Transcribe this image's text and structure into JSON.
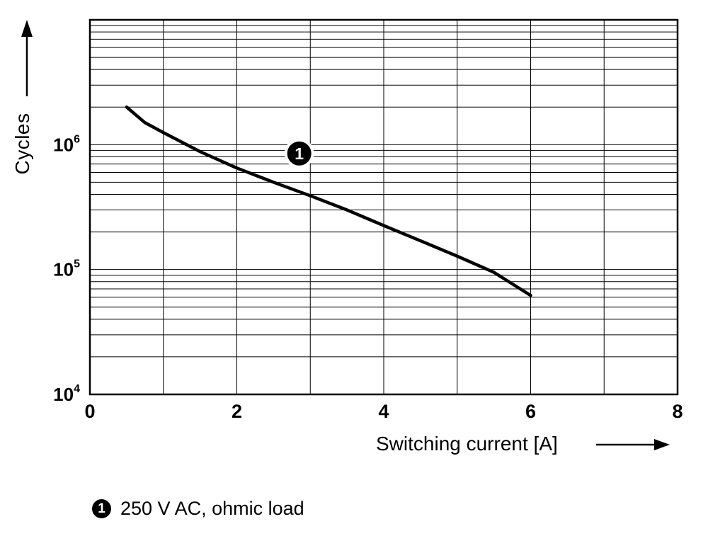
{
  "chart_data": {
    "type": "line",
    "title": "",
    "xlabel": "Switching current [A]",
    "ylabel": "Cycles",
    "xlim": [
      0,
      8
    ],
    "x_minor_step": 1,
    "x_ticks": [
      0,
      2,
      4,
      6,
      8
    ],
    "y_scale": "log",
    "ylim": [
      10000,
      10000000
    ],
    "y_ticks": [
      {
        "base": "10",
        "exp": "4",
        "value": 10000
      },
      {
        "base": "10",
        "exp": "5",
        "value": 100000
      },
      {
        "base": "10",
        "exp": "6",
        "value": 1000000
      }
    ],
    "grid": "on",
    "series": [
      {
        "name": "250 V AC, ohmic load",
        "marker": "1",
        "x": [
          0.5,
          0.75,
          1.0,
          1.5,
          2.0,
          2.5,
          3.0,
          3.5,
          4.0,
          4.5,
          5.0,
          5.5,
          6.0
        ],
        "y": [
          2000000,
          1500000,
          1250000,
          880000,
          650000,
          500000,
          390000,
          300000,
          225000,
          170000,
          128000,
          95000,
          62000
        ]
      }
    ],
    "annotation": {
      "label": "1",
      "x": 2.85,
      "y": 850000
    }
  },
  "legend": {
    "marker": "1",
    "text": "250 V AC, ohmic load"
  }
}
